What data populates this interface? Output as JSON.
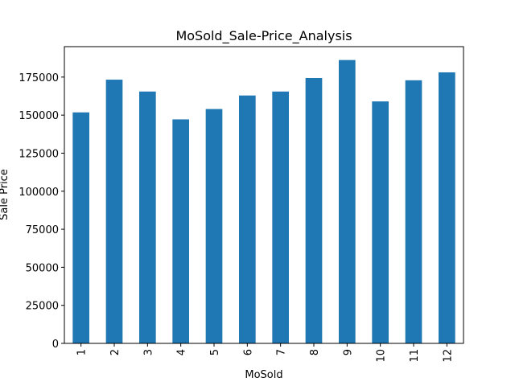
{
  "chart_data": {
    "type": "bar",
    "title": "MoSold_Sale-Price_Analysis",
    "xlabel": "MoSold",
    "ylabel": "Sale Price",
    "categories": [
      "1",
      "2",
      "3",
      "4",
      "5",
      "6",
      "7",
      "8",
      "9",
      "10",
      "11",
      "12"
    ],
    "values": [
      151800,
      173300,
      165500,
      147200,
      154000,
      162900,
      165500,
      174400,
      186200,
      159000,
      172900,
      178100
    ],
    "ylim": [
      0,
      195000
    ],
    "yticks": [
      0,
      25000,
      50000,
      75000,
      100000,
      125000,
      150000,
      175000
    ],
    "ytick_labels": [
      "0",
      "25000",
      "50000",
      "75000",
      "100000",
      "125000",
      "150000",
      "175000"
    ],
    "bar_color": "#1f77b4",
    "grid": false,
    "legend": "none"
  }
}
